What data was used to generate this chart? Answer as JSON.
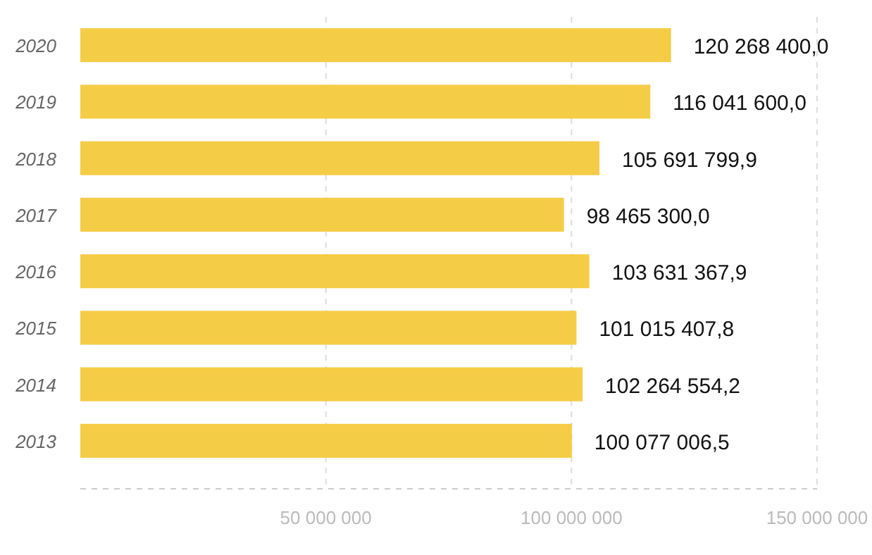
{
  "chart_data": {
    "type": "bar",
    "orientation": "horizontal",
    "categories": [
      "2020",
      "2019",
      "2018",
      "2017",
      "2016",
      "2015",
      "2014",
      "2013"
    ],
    "values": [
      120268400.0,
      116041600.0,
      105691799.9,
      98465300.0,
      103631367.9,
      101015407.8,
      102264554.2,
      100077006.5
    ],
    "value_labels": [
      "120 268 400,0",
      "116 041 600,0",
      "105 691 799,9",
      "98 465 300,0",
      "103 631 367,9",
      "101 015 407,8",
      "102 264 554,2",
      "100 077 006,5"
    ],
    "color": "#f5cc45",
    "xlim": [
      0,
      150000000
    ],
    "xticks": [
      {
        "value": 50000000,
        "label": "50 000 000"
      },
      {
        "value": 100000000,
        "label": "100 000 000"
      },
      {
        "value": 150000000,
        "label": "150 000 000"
      }
    ],
    "grid": "x"
  }
}
